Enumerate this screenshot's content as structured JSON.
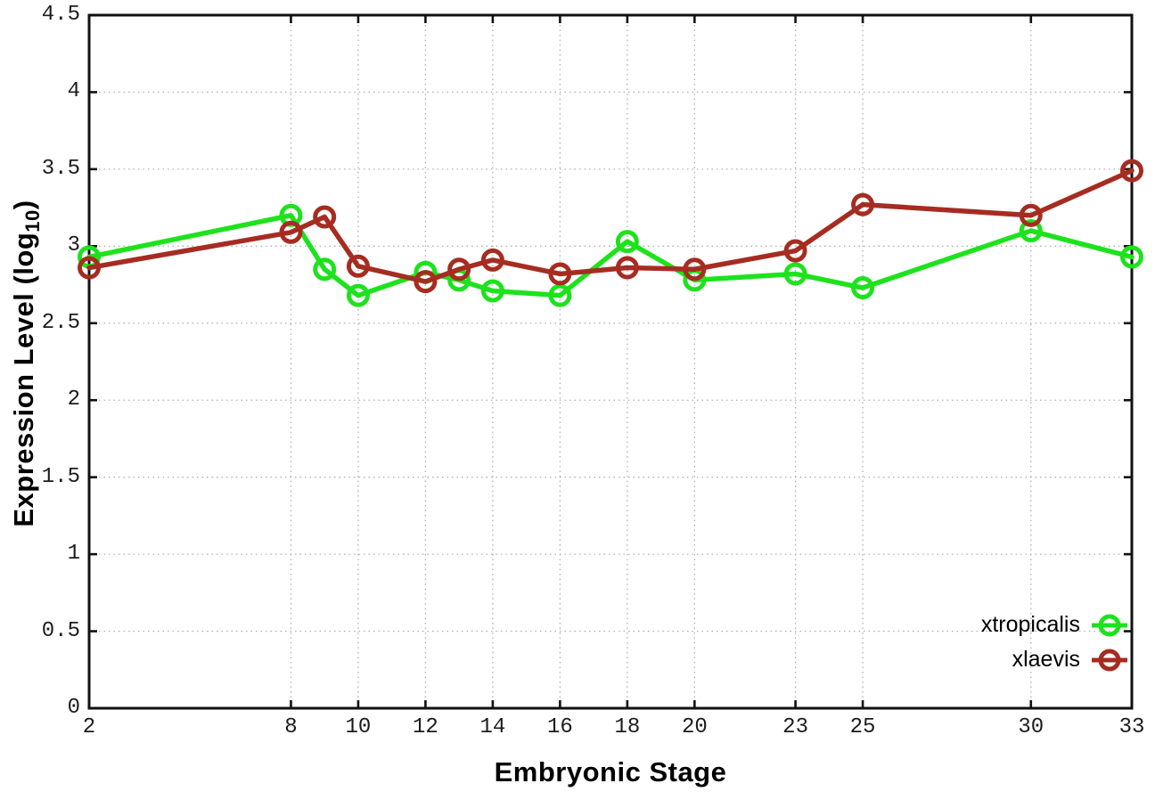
{
  "chart_data": {
    "type": "line",
    "title": "",
    "xlabel": "Embryonic Stage",
    "ylabel": "Expression Level (log10)",
    "ylabel_parts": {
      "prefix": "Expression Level (log",
      "sub": "10",
      "suffix": ")"
    },
    "x": [
      2,
      8,
      9,
      10,
      12,
      13,
      14,
      16,
      18,
      20,
      23,
      25,
      30,
      33
    ],
    "xticks": [
      2,
      8,
      10,
      12,
      14,
      16,
      18,
      20,
      23,
      25,
      30,
      33
    ],
    "yticks": [
      0,
      0.5,
      1,
      1.5,
      2,
      2.5,
      3,
      3.5,
      4,
      4.5
    ],
    "xlim": [
      2,
      33
    ],
    "ylim": [
      0,
      4.5
    ],
    "grid": true,
    "legend_position": "bottom-right",
    "series": [
      {
        "name": "xtropicalis",
        "color": "#1de21d",
        "values": [
          2.93,
          3.2,
          2.85,
          2.68,
          2.83,
          2.78,
          2.71,
          2.68,
          3.03,
          2.78,
          2.82,
          2.73,
          3.1,
          2.93
        ]
      },
      {
        "name": "xlaevis",
        "color": "#a62c21",
        "values": [
          2.86,
          3.09,
          3.19,
          2.87,
          2.77,
          2.85,
          2.91,
          2.82,
          2.86,
          2.85,
          2.97,
          3.27,
          3.2,
          3.49
        ]
      }
    ]
  },
  "colors": {
    "background": "#ffffff",
    "grid": "#b0b0b0",
    "axis": "#111111",
    "text": "#000000"
  }
}
